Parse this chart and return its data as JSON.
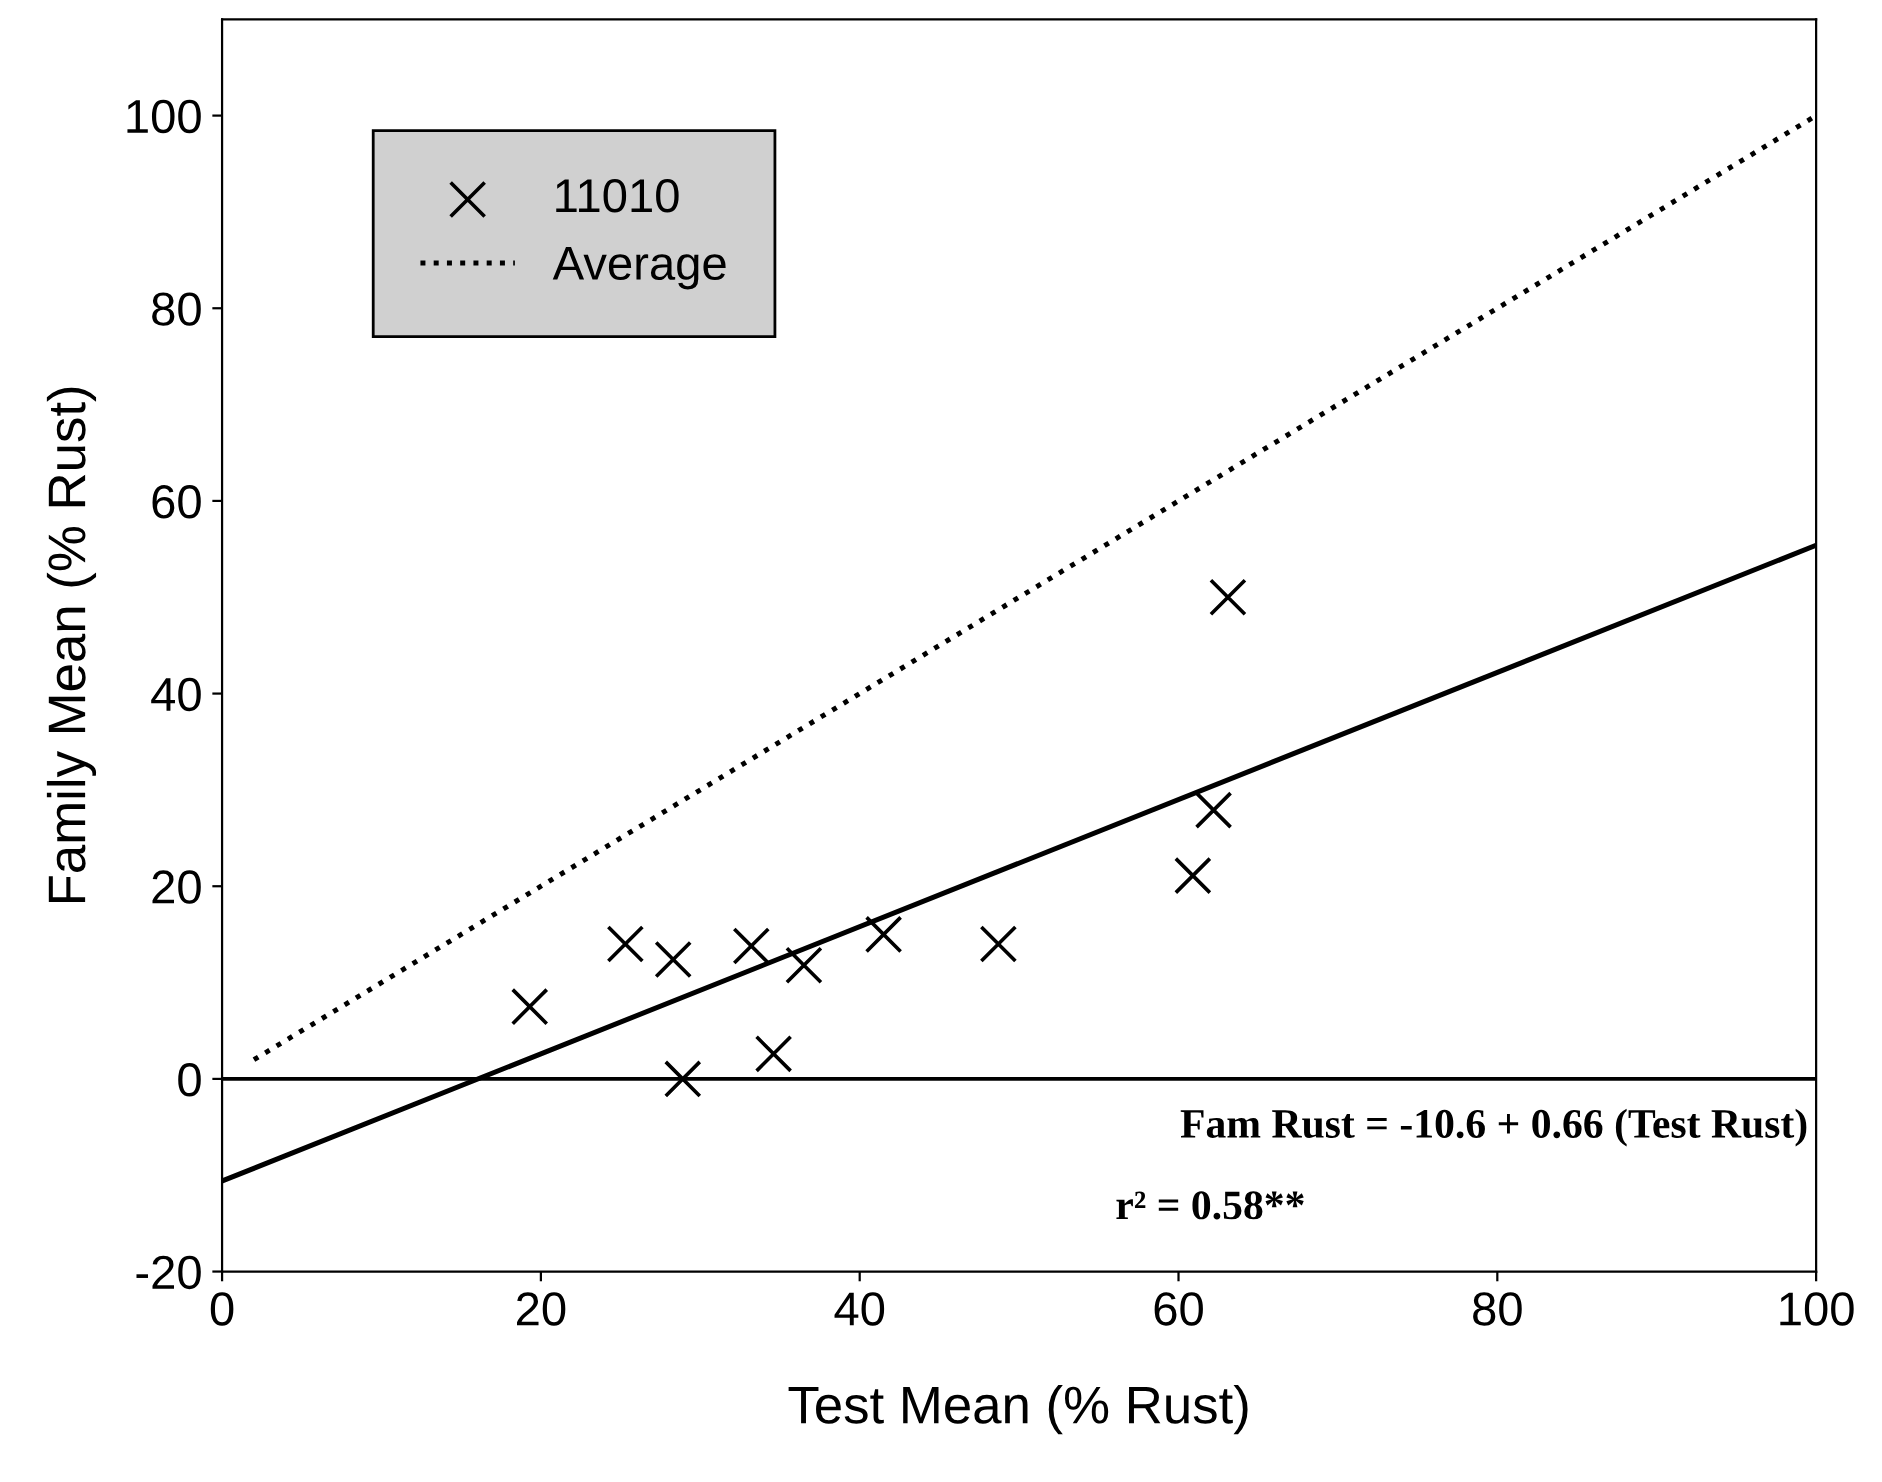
{
  "chart_data": {
    "type": "scatter",
    "xlabel": "Test Mean (% Rust)",
    "ylabel": "Family Mean (% Rust)",
    "xlim": [
      0,
      100
    ],
    "ylim": [
      -20,
      110
    ],
    "xticks": [
      0,
      20,
      40,
      60,
      80,
      100
    ],
    "yticks": [
      -20,
      0,
      20,
      40,
      60,
      80,
      100
    ],
    "series": [
      {
        "name": "11010",
        "marker": "cross",
        "color": "#000000",
        "x": [
          19.3,
          25.3,
          28.3,
          28.9,
          33.2,
          34.6,
          36.5,
          41.5,
          48.7,
          60.9,
          62.2,
          63.1
        ],
        "values": [
          7.5,
          14.0,
          12.4,
          0,
          13.8,
          2.6,
          11.8,
          15.0,
          14.0,
          21.1,
          27.9,
          50.0
        ]
      },
      {
        "name": "Average",
        "type": "line",
        "line_style": "dotted",
        "color": "#000000",
        "x": [
          2,
          100
        ],
        "values": [
          2,
          100
        ]
      },
      {
        "type": "line",
        "line_style": "solid",
        "color": "#000000",
        "x": [
          0,
          100
        ],
        "values": [
          -10.6,
          55.4
        ]
      }
    ],
    "ref_lines": [
      {
        "axis": "y",
        "value": 0,
        "color": "#000000",
        "line_style": "solid"
      }
    ],
    "annotations": [
      "Fam Rust = -10.6 + 0.66 (Test Rust)",
      "r² = 0.58**"
    ],
    "legend": "top left",
    "grid": false
  }
}
